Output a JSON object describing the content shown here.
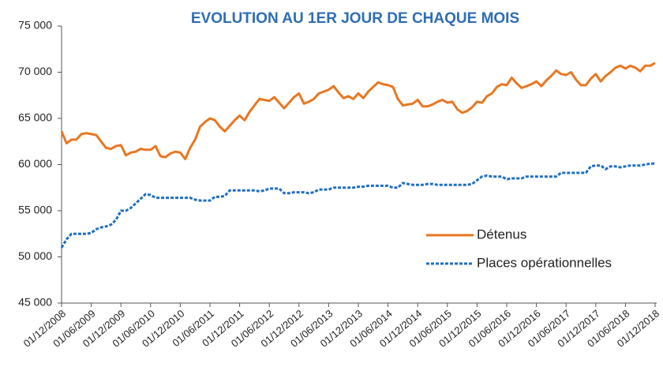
{
  "chart_data": {
    "type": "line",
    "title": "EVOLUTION AU 1ER JOUR DE CHAQUE MOIS",
    "categories": [
      "01/12/2008",
      null,
      null,
      null,
      null,
      null,
      "01/06/2009",
      null,
      null,
      null,
      null,
      null,
      "01/12/2009",
      null,
      null,
      null,
      null,
      null,
      "01/06/2010",
      null,
      null,
      null,
      null,
      null,
      "01/12/2010",
      null,
      null,
      null,
      null,
      null,
      "01/06/2011",
      null,
      null,
      null,
      null,
      null,
      "01/12/2011",
      null,
      null,
      null,
      null,
      null,
      "01/06/2012",
      null,
      null,
      null,
      null,
      null,
      "01/12/2012",
      null,
      null,
      null,
      null,
      null,
      "01/06/2013",
      null,
      null,
      null,
      null,
      null,
      "01/12/2013",
      null,
      null,
      null,
      null,
      null,
      "01/06/2014",
      null,
      null,
      null,
      null,
      null,
      "01/12/2014",
      null,
      null,
      null,
      null,
      null,
      "01/06/2015",
      null,
      null,
      null,
      null,
      null,
      "01/12/2015",
      null,
      null,
      null,
      null,
      null,
      "01/06/2016",
      null,
      null,
      null,
      null,
      null,
      "01/12/2016",
      null,
      null,
      null,
      null,
      null,
      "01/06/2017",
      null,
      null,
      null,
      null,
      null,
      "01/12/2017",
      null,
      null,
      null,
      null,
      null,
      "01/06/2018",
      null,
      null,
      null,
      null,
      null,
      "01/12/2018"
    ],
    "series": [
      {
        "name": "Détenus",
        "color": "#e87722",
        "dash": "solid",
        "values": [
          63600,
          62300,
          62700,
          62700,
          63300,
          63400,
          63300,
          63200,
          62500,
          61800,
          61700,
          62000,
          62100,
          61000,
          61300,
          61400,
          61700,
          61600,
          61600,
          62000,
          60900,
          60800,
          61200,
          61400,
          61300,
          60600,
          61800,
          62700,
          64100,
          64600,
          65000,
          64800,
          64100,
          63600,
          64200,
          64800,
          65300,
          64800,
          65700,
          66400,
          67100,
          67000,
          66900,
          67300,
          66700,
          66100,
          66700,
          67300,
          67700,
          66600,
          66800,
          67100,
          67700,
          67900,
          68100,
          68500,
          67800,
          67200,
          67400,
          67100,
          67700,
          67200,
          67900,
          68400,
          68900,
          68700,
          68600,
          68400,
          67100,
          66400,
          66500,
          66600,
          67000,
          66300,
          66300,
          66500,
          66800,
          67000,
          66700,
          66800,
          66000,
          65600,
          65800,
          66200,
          66800,
          66700,
          67400,
          67700,
          68400,
          68700,
          68600,
          69400,
          68800,
          68300,
          68500,
          68700,
          69000,
          68500,
          69100,
          69600,
          70200,
          69800,
          69700,
          70000,
          69200,
          68600,
          68600,
          69300,
          69800,
          69000,
          69600,
          70000,
          70500,
          70700,
          70400,
          70700,
          70500,
          70100,
          70700,
          70700,
          71000
        ]
      },
      {
        "name": "Places opérationnelles",
        "color": "#1f6fc0",
        "dash": "dotted",
        "values": [
          51000,
          51900,
          52500,
          52500,
          52500,
          52500,
          52600,
          53000,
          53200,
          53300,
          53500,
          54000,
          55000,
          55000,
          55300,
          55800,
          56300,
          56800,
          56700,
          56400,
          56400,
          56400,
          56400,
          56400,
          56400,
          56400,
          56400,
          56200,
          56100,
          56100,
          56100,
          56500,
          56500,
          56600,
          57200,
          57200,
          57200,
          57200,
          57200,
          57200,
          57100,
          57200,
          57400,
          57400,
          57400,
          56900,
          56900,
          57000,
          57000,
          57000,
          56900,
          57000,
          57300,
          57300,
          57300,
          57500,
          57500,
          57500,
          57500,
          57500,
          57600,
          57600,
          57700,
          57700,
          57700,
          57700,
          57700,
          57500,
          57500,
          58000,
          57900,
          57800,
          57800,
          57800,
          57900,
          57900,
          57800,
          57800,
          57800,
          57800,
          57800,
          57800,
          57800,
          57900,
          58300,
          58700,
          58800,
          58700,
          58700,
          58700,
          58400,
          58500,
          58500,
          58500,
          58700,
          58700,
          58700,
          58700,
          58700,
          58700,
          58700,
          59100,
          59100,
          59100,
          59100,
          59100,
          59100,
          59800,
          59900,
          59900,
          59500,
          59800,
          59800,
          59700,
          59800,
          59900,
          59900,
          59900,
          60000,
          60100,
          60100
        ]
      }
    ],
    "ylim": [
      45000,
      75000
    ],
    "yticks": [
      {
        "value": 45000,
        "label": "45 000"
      },
      {
        "value": 50000,
        "label": "50 000"
      },
      {
        "value": 55000,
        "label": "55 000"
      },
      {
        "value": 60000,
        "label": "60 000"
      },
      {
        "value": 65000,
        "label": "65 000"
      },
      {
        "value": 70000,
        "label": "70 000"
      },
      {
        "value": 75000,
        "label": "75 000"
      }
    ],
    "grid": false,
    "legend": "right"
  }
}
